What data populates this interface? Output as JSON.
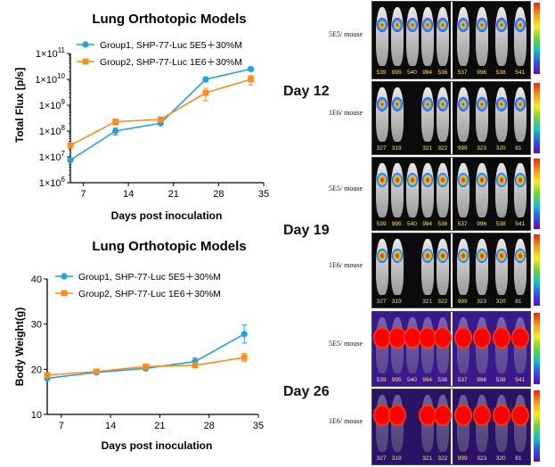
{
  "charts": {
    "flux": {
      "title": "Lung Orthotopic Models",
      "ylabel": "Total Flux [p/s]",
      "xlabel": "Days post inoculation"
    },
    "weight": {
      "title": "Lung Orthotopic Models",
      "ylabel": "Body Weight(g)",
      "xlabel": "Days post inoculation"
    }
  },
  "imaging": {
    "days": [
      "Day 12",
      "Day 19",
      "Day 26"
    ],
    "dose_top": "5E5/ mouse",
    "dose_bottom": "1E6/ mouse",
    "ids_top_left": [
      "539",
      "995",
      "540",
      "994",
      "536"
    ],
    "ids_top_right": [
      "537",
      "996",
      "538",
      "541"
    ],
    "ids_bottom_left": [
      "327",
      "319",
      "321",
      "322"
    ],
    "ids_bottom_right": [
      "999",
      "323",
      "320",
      "81"
    ]
  },
  "colors": {
    "group1": "#1fa3e0",
    "group2": "#ff8c1a"
  },
  "chart_data": [
    {
      "type": "line",
      "title": "Lung Orthotopic Models",
      "xlabel": "Days post inoculation",
      "ylabel": "Total Flux [p/s]",
      "yscale": "log",
      "xlim": [
        5,
        35
      ],
      "xticks": [
        7,
        14,
        21,
        28,
        35
      ],
      "ylim": [
        1000000,
        100000000000
      ],
      "yticks": [
        1000000,
        10000000,
        100000000,
        1000000000,
        10000000000,
        100000000000
      ],
      "yticklabels": [
        [
          "1",
          "6"
        ],
        [
          "1",
          "7"
        ],
        [
          "1",
          "8"
        ],
        [
          "1",
          "9"
        ],
        [
          "1",
          "10"
        ],
        [
          "1",
          "11"
        ]
      ],
      "legend": "top-left",
      "series": [
        {
          "name": "Group1, SHP-77-Luc 5E5＋30%M",
          "color": "#1fa3e0",
          "x": [
            5,
            12,
            19,
            26,
            33
          ],
          "y": [
            7500000,
            100000000,
            200000000,
            10000000000,
            25000000000
          ],
          "err": [
            0,
            30000000,
            20000000,
            2000000000,
            4000000000
          ]
        },
        {
          "name": "Group2, SHP-77-Luc 1E6＋30%M",
          "color": "#ff8c1a",
          "x": [
            5,
            12,
            19,
            26,
            33
          ],
          "y": [
            28000000,
            230000000,
            280000000,
            3000000000,
            10000000000
          ],
          "err": [
            0,
            60000000,
            50000000,
            1500000000,
            4000000000
          ]
        }
      ]
    },
    {
      "type": "line",
      "title": "Lung Orthotopic Models",
      "xlabel": "Days post inoculation",
      "ylabel": "Body Weight(g)",
      "xlim": [
        5,
        35
      ],
      "xticks": [
        7,
        14,
        21,
        28,
        35
      ],
      "ylim": [
        10,
        40
      ],
      "yticks": [
        10,
        20,
        30,
        40
      ],
      "legend": "top-left",
      "series": [
        {
          "name": "Group1, SHP-77-Luc 5E5＋30%M",
          "color": "#1fa3e0",
          "x": [
            5,
            12,
            19,
            26,
            33
          ],
          "y": [
            18.0,
            19.3,
            20.2,
            21.7,
            27.8
          ],
          "err": [
            0.4,
            0.4,
            0.5,
            0.8,
            2.0
          ]
        },
        {
          "name": "Group2, SHP-77-Luc 1E6＋30%M",
          "color": "#ff8c1a",
          "x": [
            5,
            12,
            19,
            26,
            33
          ],
          "y": [
            18.7,
            19.5,
            20.6,
            20.9,
            22.6
          ],
          "err": [
            0.4,
            0.4,
            0.5,
            0.4,
            0.9
          ]
        }
      ]
    }
  ]
}
